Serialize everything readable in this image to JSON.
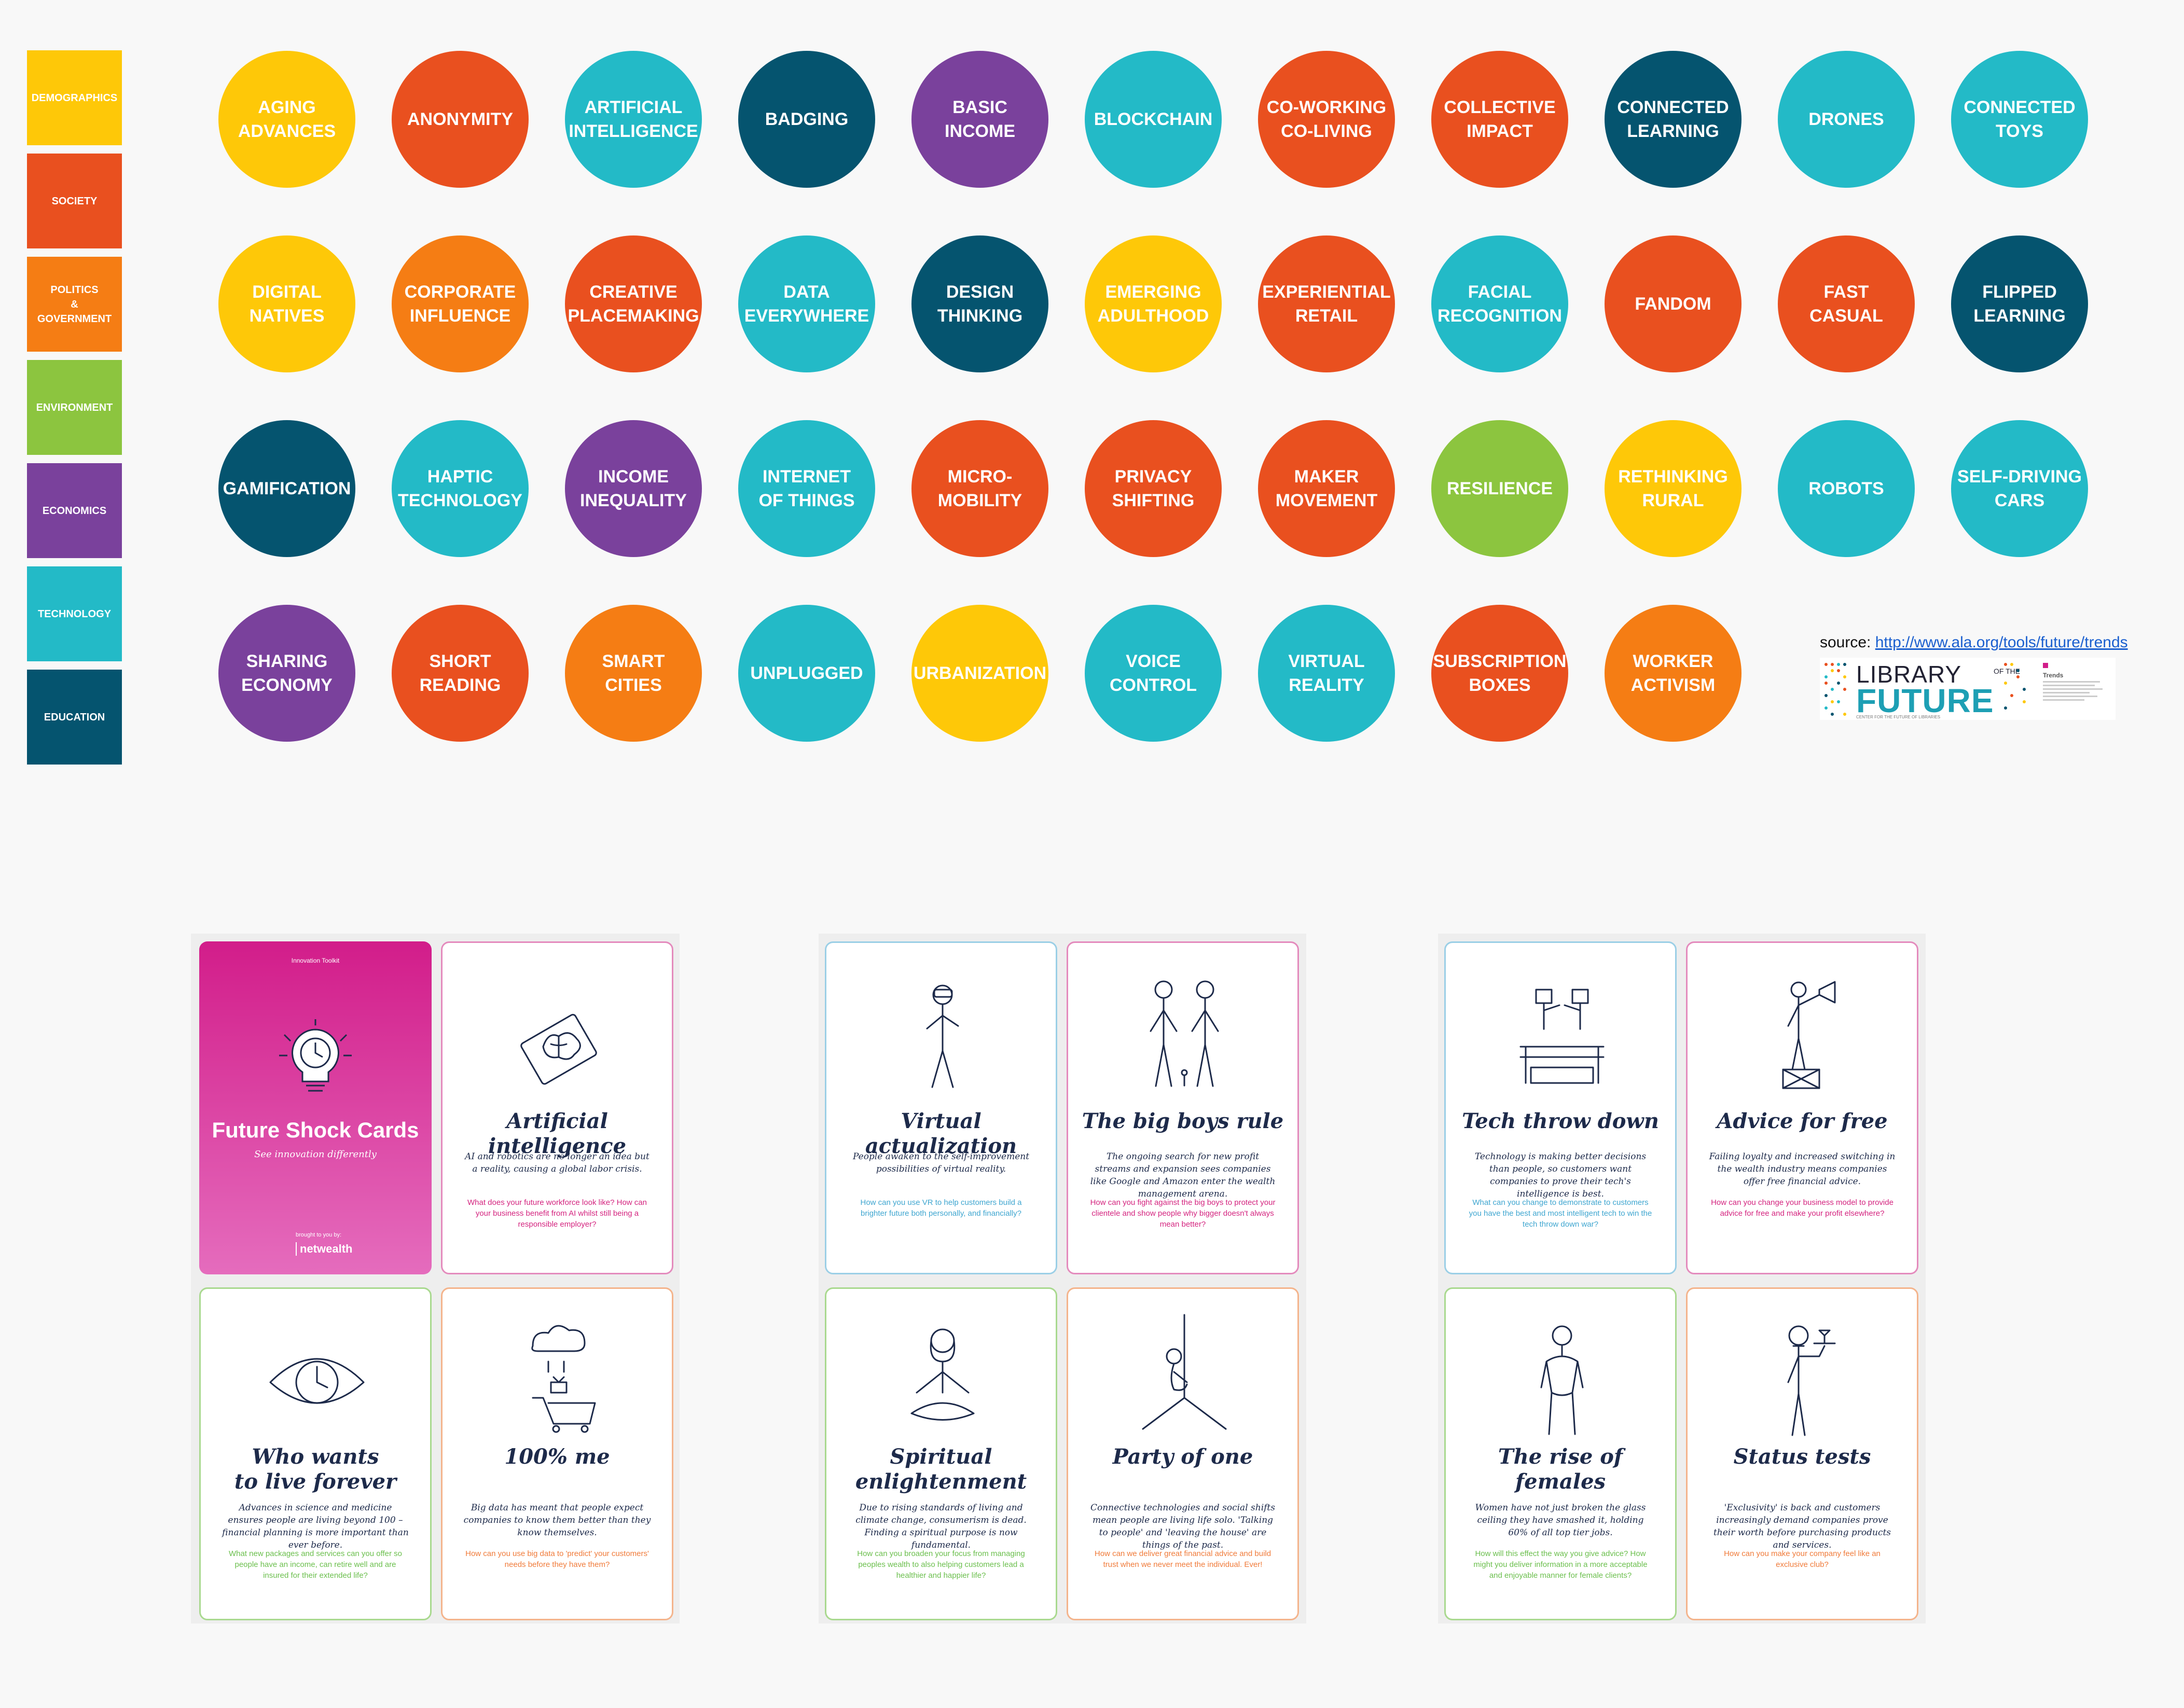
{
  "colors": {
    "demographics": "#FEC808",
    "society": "#E9501F",
    "politics": "#F57D14",
    "environment": "#8CC53F",
    "economics": "#7A419C",
    "technology": "#23BAC7",
    "education": "#05546F"
  },
  "legend": [
    {
      "label": "DEMOGRAPHICS",
      "category": "demographics"
    },
    {
      "label": "SOCIETY",
      "category": "society"
    },
    {
      "label": "POLITICS\n&\nGOVERNMENT",
      "category": "politics"
    },
    {
      "label": "ENVIRONMENT",
      "category": "environment"
    },
    {
      "label": "ECONOMICS",
      "category": "economics"
    },
    {
      "label": "TECHNOLOGY",
      "category": "technology"
    },
    {
      "label": "EDUCATION",
      "category": "education"
    }
  ],
  "trends": [
    [
      {
        "label": "AGING\nADVANCES",
        "category": "demographics"
      },
      {
        "label": "ANONYMITY",
        "category": "society"
      },
      {
        "label": "ARTIFICIAL\nINTELLIGENCE",
        "category": "technology"
      },
      {
        "label": "BADGING",
        "category": "education"
      },
      {
        "label": "BASIC\nINCOME",
        "category": "economics"
      },
      {
        "label": "BLOCKCHAIN",
        "category": "technology"
      },
      {
        "label": "CO-WORKING\nCO-LIVING",
        "category": "society"
      },
      {
        "label": "COLLECTIVE\nIMPACT",
        "category": "society"
      },
      {
        "label": "CONNECTED\nLEARNING",
        "category": "education"
      },
      {
        "label": "DRONES",
        "category": "technology"
      },
      {
        "label": "CONNECTED\nTOYS",
        "category": "technology"
      }
    ],
    [
      {
        "label": "DIGITAL\nNATIVES",
        "category": "demographics"
      },
      {
        "label": "CORPORATE\nINFLUENCE",
        "category": "politics"
      },
      {
        "label": "CREATIVE\nPLACEMAKING",
        "category": "society"
      },
      {
        "label": "DATA\nEVERYWHERE",
        "category": "technology"
      },
      {
        "label": "DESIGN\nTHINKING",
        "category": "education"
      },
      {
        "label": "EMERGING\nADULTHOOD",
        "category": "demographics"
      },
      {
        "label": "EXPERIENTIAL\nRETAIL",
        "category": "society"
      },
      {
        "label": "FACIAL\nRECOGNITION",
        "category": "technology"
      },
      {
        "label": "FANDOM",
        "category": "society"
      },
      {
        "label": "FAST\nCASUAL",
        "category": "society"
      },
      {
        "label": "FLIPPED\nLEARNING",
        "category": "education"
      }
    ],
    [
      {
        "label": "GAMIFICATION",
        "category": "education"
      },
      {
        "label": "HAPTIC\nTECHNOLOGY",
        "category": "technology"
      },
      {
        "label": "INCOME\nINEQUALITY",
        "category": "economics"
      },
      {
        "label": "INTERNET\nOF THINGS",
        "category": "technology"
      },
      {
        "label": "MICRO-\nMOBILITY",
        "category": "society"
      },
      {
        "label": "PRIVACY\nSHIFTING",
        "category": "society"
      },
      {
        "label": "MAKER\nMOVEMENT",
        "category": "society"
      },
      {
        "label": "RESILIENCE",
        "category": "environment"
      },
      {
        "label": "RETHINKING\nRURAL",
        "category": "demographics"
      },
      {
        "label": "ROBOTS",
        "category": "technology"
      },
      {
        "label": "SELF-DRIVING\nCARS",
        "category": "technology"
      }
    ],
    [
      {
        "label": "SHARING\nECONOMY",
        "category": "economics"
      },
      {
        "label": "SHORT\nREADING",
        "category": "society"
      },
      {
        "label": "SMART\nCITIES",
        "category": "politics"
      },
      {
        "label": "UNPLUGGED",
        "category": "technology"
      },
      {
        "label": "URBANIZATION",
        "category": "demographics"
      },
      {
        "label": "VOICE\nCONTROL",
        "category": "technology"
      },
      {
        "label": "VIRTUAL\nREALITY",
        "category": "technology"
      },
      {
        "label": "SUBSCRIPTION\nBOXES",
        "category": "society"
      },
      {
        "label": "WORKER\nACTIVISM",
        "category": "politics"
      }
    ]
  ],
  "source": {
    "prefix": "source: ",
    "link": "http://www.ala.org/tools/future/trends"
  },
  "logo": {
    "line1": "LIBRARY",
    "of": "OF THE",
    "line2": "FUTURE",
    "sub": "CENTER FOR THE FUTURE OF LIBRARIES",
    "mini_title": "Trends"
  },
  "cover": {
    "toolkit": "Innovation Toolkit",
    "title": "Future Shock Cards",
    "subtitle": "See innovation differently",
    "brought": "brought to you by:",
    "brand": "netwealth"
  },
  "cards": [
    {
      "title": "Artificial intelligence",
      "desc": "AI and robotics are no longer an idea but a reality, causing a global labor crisis.",
      "question": "What does your future workforce look like? How can your business benefit from AI whilst still being a responsible employer?",
      "qcolor": "#d4247f",
      "border": "#e48bbd",
      "icon": "chip-brain-icon"
    },
    {
      "title": "Virtual actualization",
      "desc": "People awaken to the self-improvement possibilities of virtual reality.",
      "question": "How can you use VR to help customers build a brighter future both personally, and financially?",
      "qcolor": "#3fa6d0",
      "border": "#9bcfe6",
      "icon": "vr-person-icon"
    },
    {
      "title": "The big boys rule",
      "desc": "The ongoing search for new profit streams and expansion sees companies like Google and Amazon enter the wealth management arena.",
      "question": "How can you fight against the big boys to protect your clientele and show people why bigger doesn't always mean better?",
      "qcolor": "#d4247f",
      "border": "#e48bbd",
      "icon": "giants-icon"
    },
    {
      "title": "Tech throw down",
      "desc": "Technology is making better decisions than people, so customers want companies to prove their tech's intelligence is best.",
      "question": "What can you change to demonstrate to customers you have the best and most intelligent tech to win the tech throw down war?",
      "qcolor": "#3fa6d0",
      "border": "#9bcfe6",
      "icon": "robot-boxing-icon"
    },
    {
      "title": "Advice for free",
      "desc": "Failing loyalty and increased switching in the wealth industry means companies offer free financial advice.",
      "question": "How can you change your business model to provide advice for free and make your profit elsewhere?",
      "qcolor": "#d4247f",
      "border": "#e48bbd",
      "icon": "megaphone-person-icon"
    },
    {
      "title": "Who wants\nto live forever",
      "desc": "Advances in science and medicine ensures people are living beyond 100 – financial planning is more important than ever before.",
      "question": "What new packages and services can you offer so people have an income, can retire well and are insured for their extended life?",
      "qcolor": "#6bbf4d",
      "border": "#a9d98f",
      "icon": "clock-eye-icon"
    },
    {
      "title": "100% me",
      "desc": "Big data has meant that people expect companies to know them better than they know themselves.",
      "question": "How can you use big data to 'predict' your customers' needs before they have them?",
      "qcolor": "#f07b3a",
      "border": "#f4b48c",
      "icon": "data-cloud-cart-icon"
    },
    {
      "title": "Spiritual enlightenment",
      "desc": "Due to rising standards of living and climate change, consumerism is dead. Finding a spiritual purpose is now fundamental.",
      "question": "How can you broaden your focus from managing peoples wealth to also helping customers lead a healthier and happier life?",
      "qcolor": "#6bbf4d",
      "border": "#a9d98f",
      "icon": "meditation-icon"
    },
    {
      "title": "Party of one",
      "desc": "Connective technologies and social shifts mean people are living life solo. 'Talking to people' and 'leaving the house' are things of the past.",
      "question": "How can we deliver great financial advice and build trust when we never meet the individual. Ever!",
      "qcolor": "#f07b3a",
      "border": "#f4b48c",
      "icon": "person-corner-icon"
    },
    {
      "title": "The rise of females",
      "desc": "Women have not just broken the glass ceiling they have smashed it, holding 60% of all top tier jobs.",
      "question": "How will this effect the way you give advice? How might you deliver information in a more acceptable and enjoyable manner for female clients?",
      "qcolor": "#6bbf4d",
      "border": "#a9d98f",
      "icon": "woman-icon"
    },
    {
      "title": "Status tests",
      "desc": "'Exclusivity' is back and customers increasingly demand companies prove their worth before purchasing products and services.",
      "question": "How can you make your company feel like an exclusive club?",
      "qcolor": "#f07b3a",
      "border": "#f4b48c",
      "icon": "waiter-icon"
    }
  ]
}
